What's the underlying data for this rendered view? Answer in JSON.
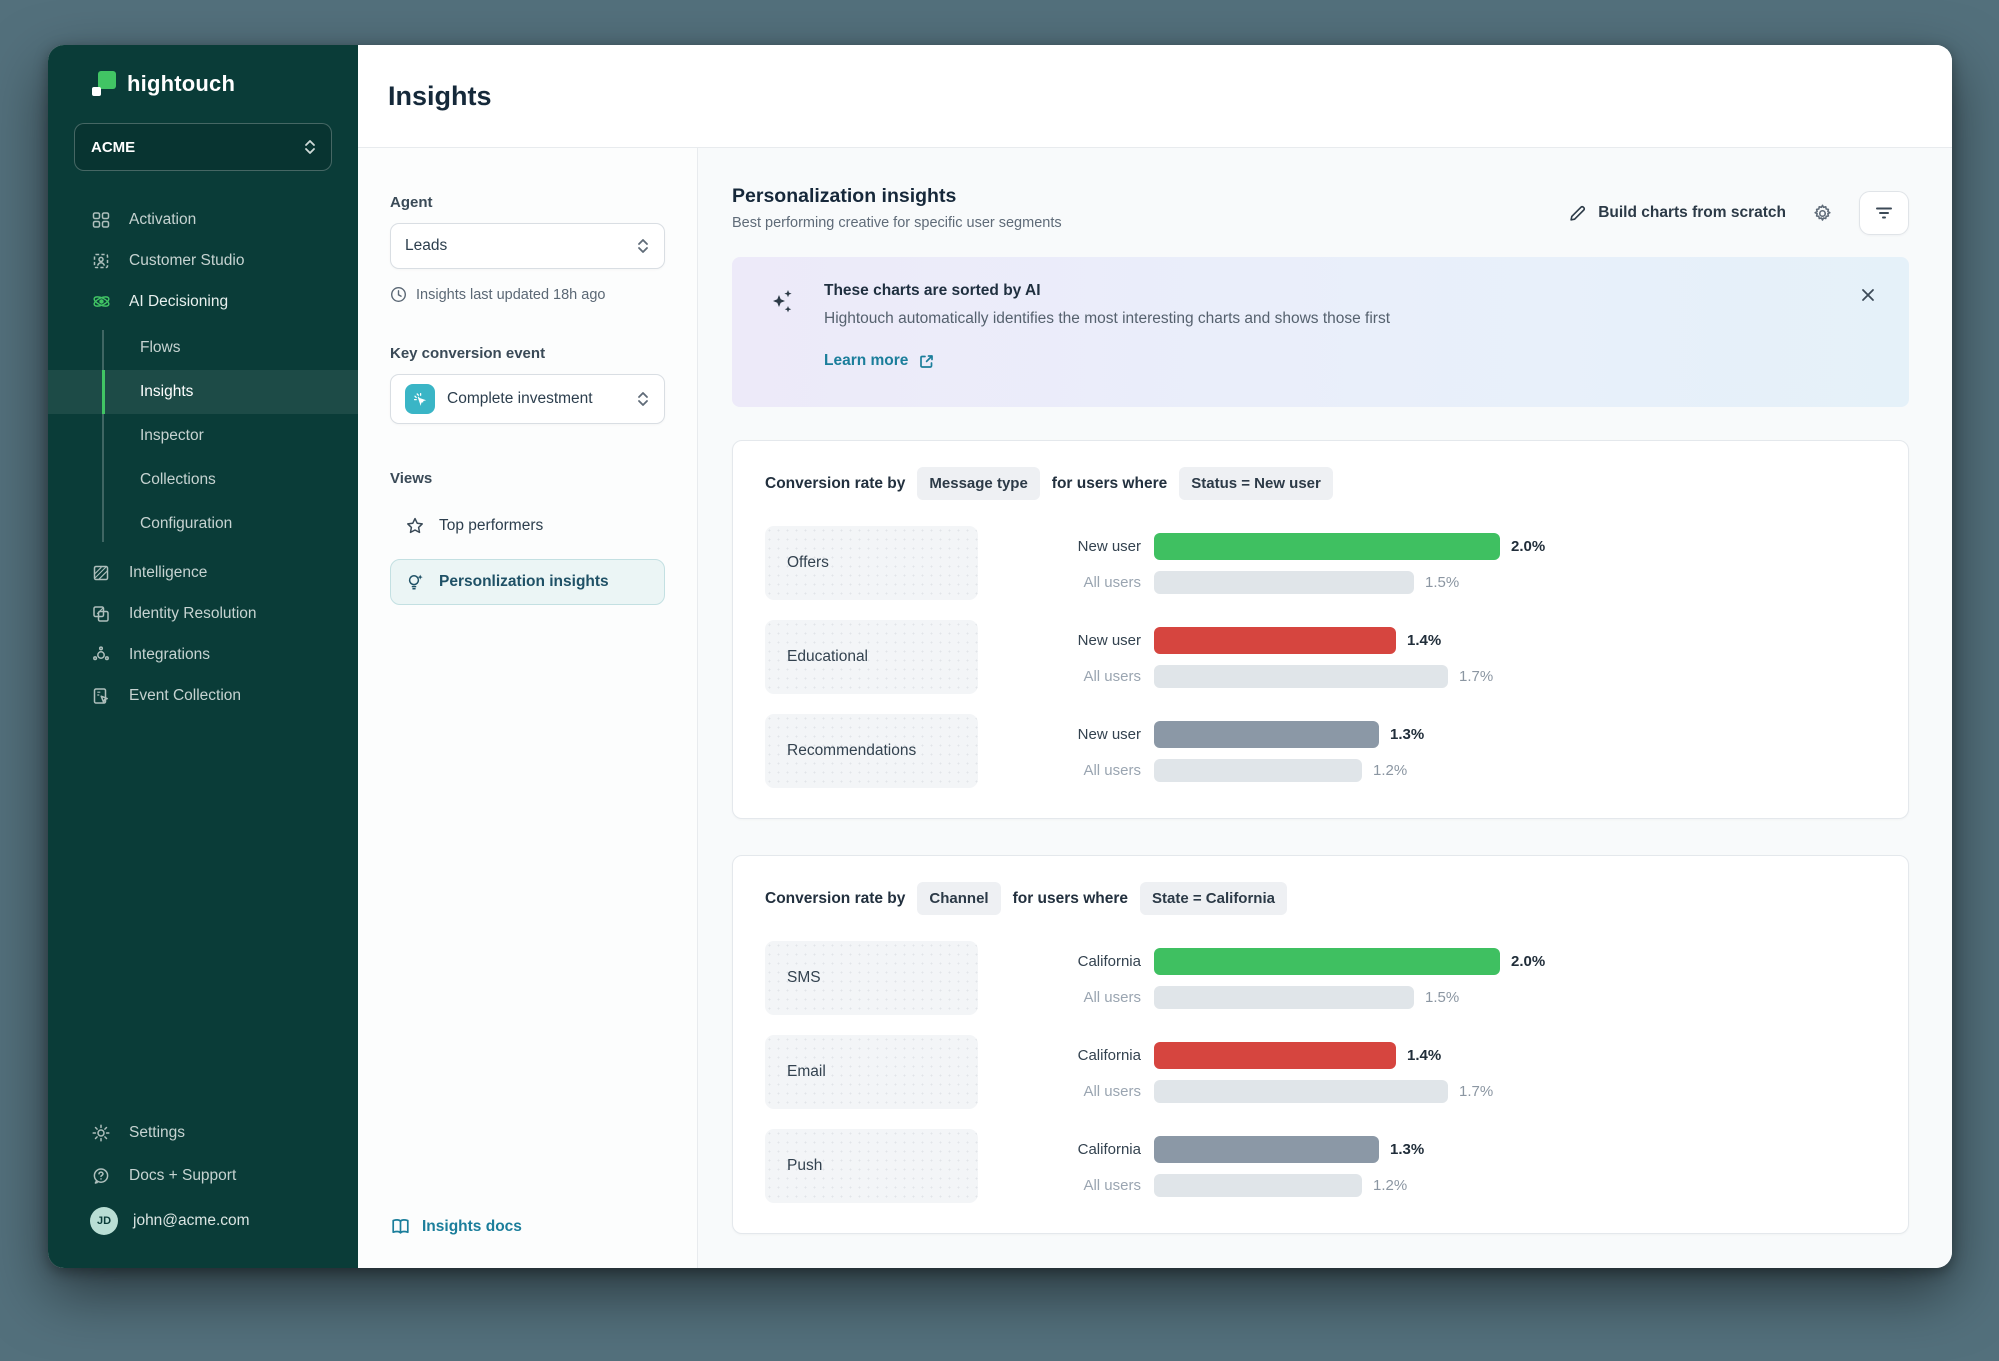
{
  "brand": {
    "name": "hightouch"
  },
  "workspace": {
    "name": "ACME"
  },
  "sidebar": {
    "items": [
      {
        "label": "Activation"
      },
      {
        "label": "Customer Studio"
      },
      {
        "label": "AI Decisioning"
      },
      {
        "label": "Intelligence"
      },
      {
        "label": "Identity Resolution"
      },
      {
        "label": "Integrations"
      },
      {
        "label": "Event Collection"
      }
    ],
    "ai_children": [
      {
        "label": "Flows"
      },
      {
        "label": "Insights"
      },
      {
        "label": "Inspector"
      },
      {
        "label": "Collections"
      },
      {
        "label": "Configuration"
      }
    ],
    "footer": [
      {
        "label": "Settings"
      },
      {
        "label": "Docs + Support"
      }
    ],
    "user": {
      "initials": "JD",
      "email": "john@acme.com"
    }
  },
  "header": {
    "title": "Insights"
  },
  "panel": {
    "agent_label": "Agent",
    "agent_value": "Leads",
    "last_updated": "Insights last updated 18h ago",
    "key_event_label": "Key conversion event",
    "key_event_value": "Complete investment",
    "views_label": "Views",
    "views": [
      {
        "label": "Top performers"
      },
      {
        "label": "Personlization insights"
      }
    ],
    "docs_link": "Insights docs"
  },
  "main": {
    "title": "Personalization insights",
    "subtitle": "Best performing creative for specific user segments",
    "build_button": "Build charts from scratch",
    "banner": {
      "title": "These charts are sorted by AI",
      "body": "Hightouch automatically identifies the most interesting charts and shows those first",
      "link": "Learn more"
    }
  },
  "chart_data": [
    {
      "type": "bar",
      "title_prefix": "Conversion rate by",
      "dimension": "Message type",
      "connector": "for users where",
      "filter": "Status = New user",
      "xlim": [
        0,
        2.0
      ],
      "categories": [
        "Offers",
        "Educational",
        "Recommendations"
      ],
      "rows": [
        {
          "category": "Offers",
          "primary": {
            "label": "New user",
            "value": 2.0,
            "display": "2.0%",
            "color": "#3fc061"
          },
          "secondary": {
            "label": "All users",
            "value": 1.5,
            "display": "1.5%"
          }
        },
        {
          "category": "Educational",
          "primary": {
            "label": "New user",
            "value": 1.4,
            "display": "1.4%",
            "color": "#d6453f"
          },
          "secondary": {
            "label": "All users",
            "value": 1.7,
            "display": "1.7%"
          }
        },
        {
          "category": "Recommendations",
          "primary": {
            "label": "New user",
            "value": 1.3,
            "display": "1.3%",
            "color": "#8b98a6"
          },
          "secondary": {
            "label": "All users",
            "value": 1.2,
            "display": "1.2%"
          }
        }
      ],
      "secondary_color": "#e0e5e9"
    },
    {
      "type": "bar",
      "title_prefix": "Conversion rate by",
      "dimension": "Channel",
      "connector": "for users where",
      "filter": "State = California",
      "xlim": [
        0,
        2.0
      ],
      "categories": [
        "SMS",
        "Email",
        "Push"
      ],
      "rows": [
        {
          "category": "SMS",
          "primary": {
            "label": "California",
            "value": 2.0,
            "display": "2.0%",
            "color": "#3fc061"
          },
          "secondary": {
            "label": "All users",
            "value": 1.5,
            "display": "1.5%"
          }
        },
        {
          "category": "Email",
          "primary": {
            "label": "California",
            "value": 1.4,
            "display": "1.4%",
            "color": "#d6453f"
          },
          "secondary": {
            "label": "All users",
            "value": 1.7,
            "display": "1.7%"
          }
        },
        {
          "category": "Push",
          "primary": {
            "label": "California",
            "value": 1.3,
            "display": "1.3%",
            "color": "#8b98a6"
          },
          "secondary": {
            "label": "All users",
            "value": 1.2,
            "display": "1.2%"
          }
        }
      ],
      "secondary_color": "#e0e5e9"
    }
  ],
  "colors": {
    "accent_green": "#41c464",
    "bar_green": "#3fc061",
    "bar_red": "#d6453f",
    "bar_slate": "#8b98a6",
    "bar_gray": "#e0e5e9",
    "sidebar_bg": "#0a3c38",
    "teal_link": "#1b7e9b",
    "event_icon": "#3ab5c6"
  }
}
